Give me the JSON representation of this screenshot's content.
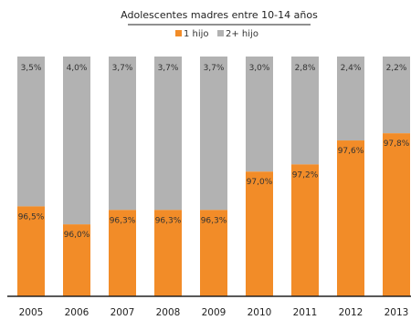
{
  "chart_data": {
    "type": "bar",
    "stacked": true,
    "normalized_percent": true,
    "title": "Adolescentes madres entre 10-14 años",
    "legend_position": "top",
    "categories": [
      "2005",
      "2006",
      "2007",
      "2008",
      "2009",
      "2010",
      "2011",
      "2012",
      "2013"
    ],
    "series": [
      {
        "name": "1 hijo",
        "color": "#f28c28",
        "values": [
          96.5,
          96.0,
          96.3,
          96.3,
          96.3,
          97.0,
          97.2,
          97.6,
          97.8
        ],
        "labels": [
          "96,5%",
          "96,0%",
          "96,3%",
          "96,3%",
          "96,3%",
          "97,0%",
          "97,2%",
          "97,6%",
          "97,8%"
        ]
      },
      {
        "name": "2+ hijo",
        "color": "#b2b2b2",
        "values": [
          3.5,
          4.0,
          3.7,
          3.7,
          3.7,
          3.0,
          2.8,
          2.4,
          2.2
        ],
        "labels": [
          "3,5%",
          "4,0%",
          "3,7%",
          "3,7%",
          "3,7%",
          "3,0%",
          "2,8%",
          "2,4%",
          "2,2%"
        ]
      }
    ],
    "visual_split_fraction": [
      0.375,
      0.3,
      0.36,
      0.36,
      0.36,
      0.52,
      0.55,
      0.65,
      0.68
    ],
    "grid": false
  }
}
